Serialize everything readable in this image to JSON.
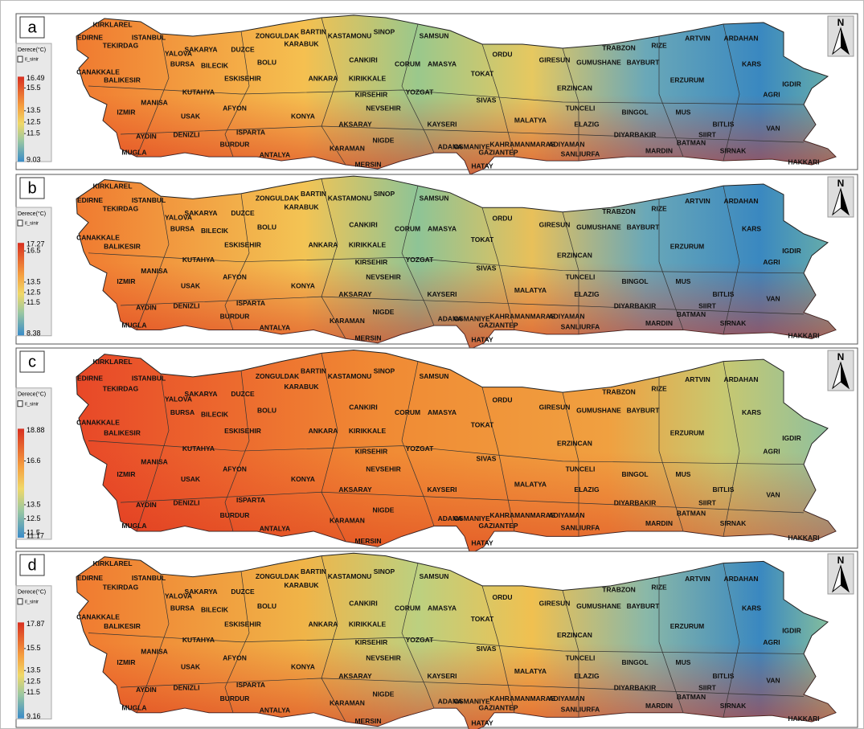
{
  "panels": [
    {
      "label": "a",
      "legend": {
        "title": "Derece(°C)",
        "layer": "il_sinir",
        "max": 16.49,
        "min": 9.03,
        "ticks": [
          15.5,
          13.5,
          12.5,
          11.5
        ]
      }
    },
    {
      "label": "b",
      "legend": {
        "title": "Derece(°C)",
        "layer": "il_sinir",
        "max": 17.27,
        "min": 8.38,
        "ticks": [
          16.5,
          13.5,
          12.5,
          11.5
        ]
      }
    },
    {
      "label": "c",
      "legend": {
        "title": "Derece(°C)",
        "layer": "il_sinir",
        "max": 18.88,
        "min": 11.17,
        "ticks": [
          16.6,
          13.5,
          12.5,
          11.5
        ]
      }
    },
    {
      "label": "d",
      "legend": {
        "title": "Derece(°C)",
        "layer": "il_sinir",
        "max": 17.87,
        "min": 9.16,
        "ticks": [
          15.5,
          13.5,
          12.5,
          11.5
        ]
      }
    }
  ],
  "north": "N",
  "provinces": [
    "KIRKLAREL",
    "EDIRNE",
    "TEKIRDAG",
    "ISTANBUL",
    "SAKARYA",
    "ZONGULDAK",
    "KARABUK",
    "BARTIN",
    "KASTAMONU",
    "SINOP",
    "SAMSUN",
    "AMASYA",
    "ORDU",
    "GIRESUN",
    "TRABZON",
    "RIZE",
    "ARTVIN",
    "ARDAHAN",
    "KARS",
    "IGDIR",
    "AGRI",
    "ERZURUM",
    "BAYBURT",
    "GUMUSHANE",
    "ERZINCAN",
    "TUNCELI",
    "BINGOL",
    "MUS",
    "BITLIS",
    "VAN",
    "HAKKARI",
    "SIRNAK",
    "SIIRT",
    "BATMAN",
    "MARDIN",
    "DIYARBAKIR",
    "ELAZIG",
    "MALATYA",
    "ADIYAMAN",
    "SANLIURFA",
    "GAZIANTEP",
    "KAHRAMANMARAS",
    "OSMANIYE",
    "ADANA",
    "HATAY",
    "MERSIN",
    "KARAMAN",
    "NIGDE",
    "AKSARAY",
    "NEVSEHIR",
    "KAYSERI",
    "SIVAS",
    "TOKAT",
    "YOZGAT",
    "KIRSEHIR",
    "KIRIKKALE",
    "ANKARA",
    "CORUM",
    "CANKIRI",
    "BOLU",
    "DUZCE",
    "BILECIK",
    "BURSA",
    "YALOVA",
    "ESKISEHIR",
    "KUTAHYA",
    "AFYON",
    "KONYA",
    "ISPARTA",
    "BURDUR",
    "ANTALYA",
    "DENIZLI",
    "USAK",
    "AYDIN",
    "MUGLA",
    "IZMIR",
    "MANISA",
    "BALIKESIR",
    "CANAKKALE"
  ]
}
